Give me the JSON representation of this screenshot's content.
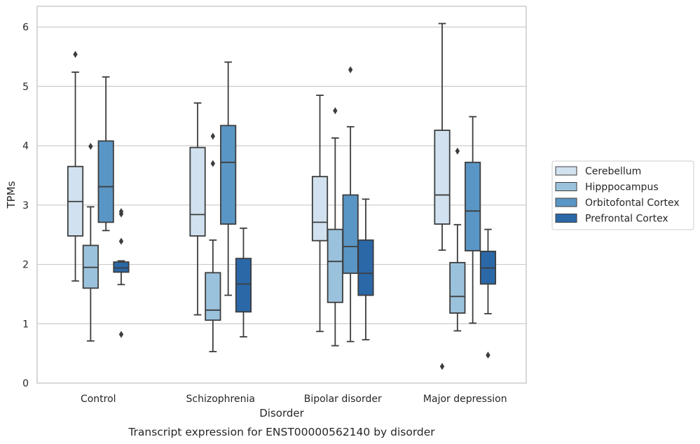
{
  "chart_data": {
    "type": "box",
    "caption": "Transcript expression for ENST00000562140 by disorder",
    "xlabel": "Disorder",
    "ylabel": "TPMs",
    "ylim": [
      0,
      6.35
    ],
    "yticks": [
      0,
      1,
      2,
      3,
      4,
      5,
      6
    ],
    "grid": "horizontal",
    "legend_position": "right",
    "categories": [
      "Control",
      "Schizophrenia",
      "Bipolar disorder",
      "Major depression"
    ],
    "series": [
      {
        "name": "Cerebellum",
        "color": "#d1e1f0",
        "boxes": [
          {
            "whisker_low": 1.72,
            "q1": 2.48,
            "median": 3.06,
            "q3": 3.65,
            "whisker_high": 5.24,
            "outliers": [
              5.54
            ]
          },
          {
            "whisker_low": 1.15,
            "q1": 2.48,
            "median": 2.84,
            "q3": 3.97,
            "whisker_high": 4.72,
            "outliers": []
          },
          {
            "whisker_low": 0.87,
            "q1": 2.4,
            "median": 2.71,
            "q3": 3.48,
            "whisker_high": 4.85,
            "outliers": []
          },
          {
            "whisker_low": 2.24,
            "q1": 2.68,
            "median": 3.17,
            "q3": 4.26,
            "whisker_high": 6.06,
            "outliers": [
              0.28
            ]
          }
        ]
      },
      {
        "name": "Hipppocampus",
        "color": "#9bc2dc",
        "boxes": [
          {
            "whisker_low": 0.71,
            "q1": 1.6,
            "median": 1.95,
            "q3": 2.32,
            "whisker_high": 2.97,
            "outliers": [
              3.99
            ]
          },
          {
            "whisker_low": 0.53,
            "q1": 1.06,
            "median": 1.23,
            "q3": 1.86,
            "whisker_high": 2.41,
            "outliers": [
              4.16,
              3.7
            ]
          },
          {
            "whisker_low": 0.63,
            "q1": 1.36,
            "median": 2.05,
            "q3": 2.59,
            "whisker_high": 4.13,
            "outliers": [
              4.59
            ]
          },
          {
            "whisker_low": 0.88,
            "q1": 1.18,
            "median": 1.46,
            "q3": 2.03,
            "whisker_high": 2.67,
            "outliers": [
              3.91
            ]
          }
        ]
      },
      {
        "name": "Orbitofontal Cortex",
        "color": "#5a96c5",
        "boxes": [
          {
            "whisker_low": 2.57,
            "q1": 2.71,
            "median": 3.31,
            "q3": 4.08,
            "whisker_high": 5.16,
            "outliers": []
          },
          {
            "whisker_low": 1.48,
            "q1": 2.68,
            "median": 3.72,
            "q3": 4.34,
            "whisker_high": 5.41,
            "outliers": []
          },
          {
            "whisker_low": 0.7,
            "q1": 1.85,
            "median": 2.3,
            "q3": 3.17,
            "whisker_high": 4.32,
            "outliers": [
              5.28
            ]
          },
          {
            "whisker_low": 1.01,
            "q1": 2.23,
            "median": 2.9,
            "q3": 3.72,
            "whisker_high": 4.49,
            "outliers": []
          }
        ]
      },
      {
        "name": "Prefrontal Cortex",
        "color": "#2b68a8",
        "boxes": [
          {
            "whisker_low": 1.66,
            "q1": 1.87,
            "median": 1.94,
            "q3": 2.04,
            "whisker_high": 2.06,
            "outliers": [
              2.89,
              2.85,
              2.39,
              0.82
            ]
          },
          {
            "whisker_low": 0.78,
            "q1": 1.2,
            "median": 1.67,
            "q3": 2.1,
            "whisker_high": 2.61,
            "outliers": []
          },
          {
            "whisker_low": 0.73,
            "q1": 1.48,
            "median": 1.85,
            "q3": 2.41,
            "whisker_high": 3.1,
            "outliers": []
          },
          {
            "whisker_low": 1.17,
            "q1": 1.67,
            "median": 1.94,
            "q3": 2.22,
            "whisker_high": 2.59,
            "outliers": [
              0.47
            ]
          }
        ]
      }
    ]
  }
}
